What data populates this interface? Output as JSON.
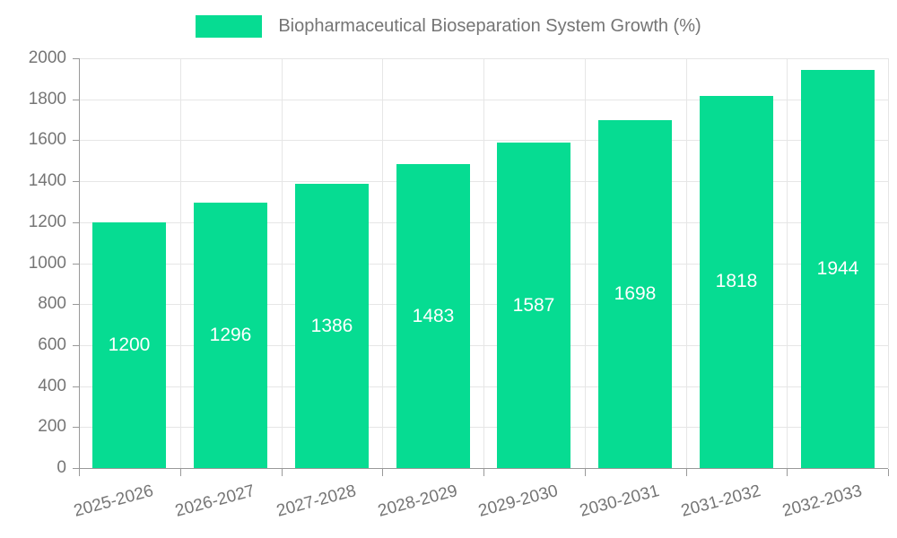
{
  "legend": {
    "label": "Biopharmaceutical Bioseparation System Growth (%)"
  },
  "chart_data": {
    "type": "bar",
    "title": "Biopharmaceutical Bioseparation System Growth (%)",
    "categories": [
      "2025-2026",
      "2026-2027",
      "2027-2028",
      "2028-2029",
      "2029-2030",
      "2030-2031",
      "2031-2032",
      "2032-2033"
    ],
    "values": [
      1200,
      1296,
      1386,
      1483,
      1587,
      1698,
      1818,
      1944
    ],
    "xlabel": "",
    "ylabel": "",
    "ylim": [
      0,
      2000
    ],
    "ytick_step": 200,
    "grid": true,
    "legend_position": "top",
    "bar_color": "#06DC92",
    "bar_label_color": "#FFFFFF",
    "axis_text_color": "#757575",
    "grid_color": "#E6E6E6",
    "axis_line_color": "#999999"
  }
}
